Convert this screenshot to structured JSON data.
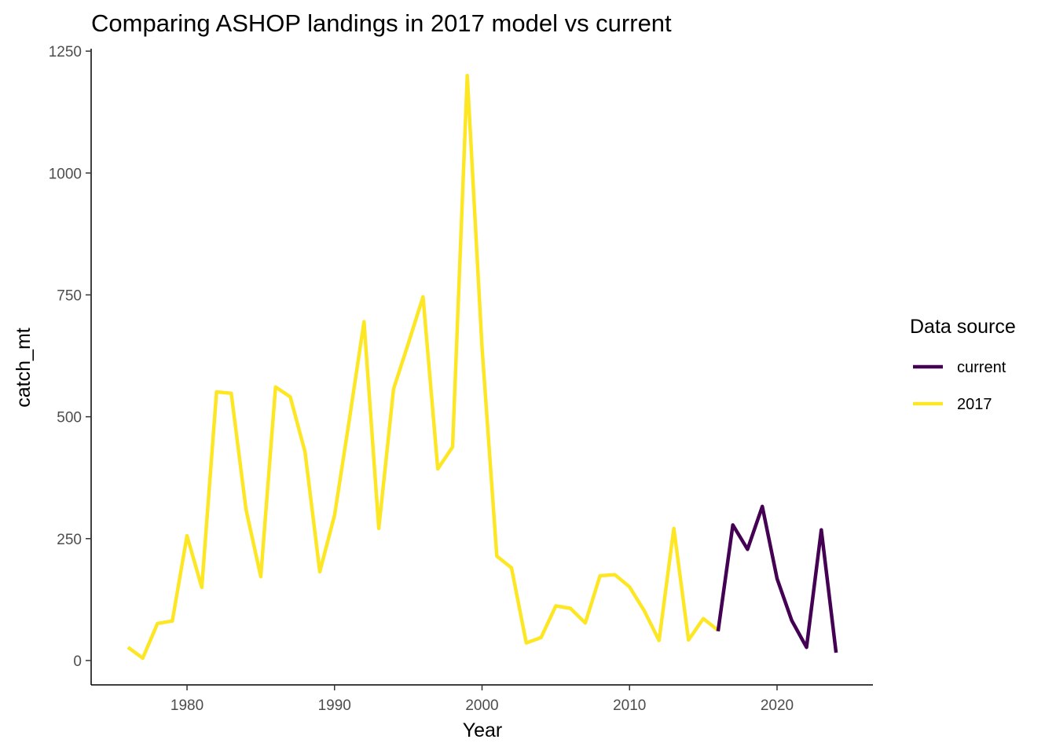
{
  "chart_data": {
    "type": "line",
    "title": "Comparing ASHOP landings in 2017 model vs current",
    "xlabel": "Year",
    "ylabel": "catch_mt",
    "xlim": [
      1973.5,
      2026.5
    ],
    "ylim": [
      -50,
      1255
    ],
    "x_ticks": [
      1980,
      1990,
      2000,
      2010,
      2020
    ],
    "y_ticks": [
      0,
      250,
      500,
      750,
      1000,
      1250
    ],
    "grid": false,
    "legend": {
      "title": "Data source",
      "position": "right"
    },
    "series": [
      {
        "name": "current",
        "color": "#440154",
        "x": [
          2016,
          2017,
          2018,
          2019,
          2020,
          2021,
          2022,
          2023,
          2024
        ],
        "y": [
          60,
          278,
          228,
          316,
          168,
          82,
          27,
          268,
          16
        ]
      },
      {
        "name": "2017",
        "color": "#FDE725",
        "x": [
          1976,
          1977,
          1978,
          1979,
          1980,
          1981,
          1982,
          1983,
          1984,
          1985,
          1986,
          1987,
          1988,
          1989,
          1990,
          1991,
          1992,
          1993,
          1994,
          1995,
          1996,
          1997,
          1998,
          1999,
          2000,
          2001,
          2002,
          2003,
          2004,
          2005,
          2006,
          2007,
          2008,
          2009,
          2010,
          2011,
          2012,
          2013,
          2014,
          2015,
          2016
        ],
        "y": [
          27,
          5,
          76,
          81,
          256,
          150,
          551,
          548,
          310,
          172,
          561,
          541,
          428,
          182,
          298,
          493,
          695,
          271,
          557,
          650,
          746,
          393,
          438,
          1200,
          642,
          214,
          190,
          36,
          47,
          112,
          107,
          77,
          174,
          176,
          151,
          102,
          41,
          271,
          42,
          86,
          62
        ]
      }
    ]
  }
}
